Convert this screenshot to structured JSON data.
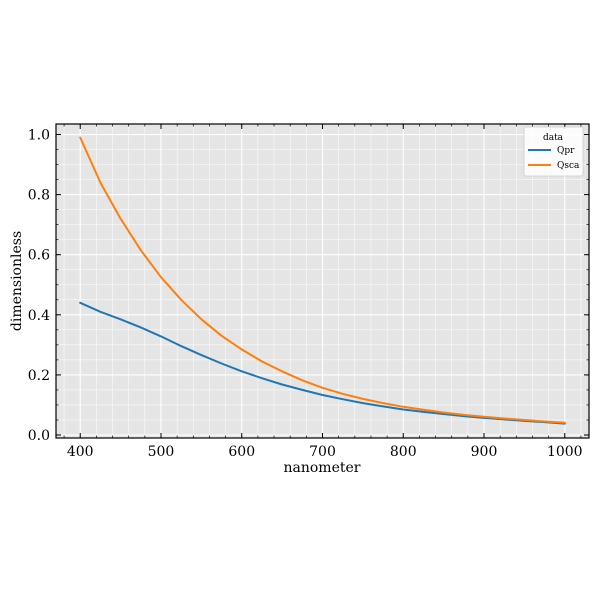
{
  "chart_data": {
    "type": "line",
    "title": "",
    "xlabel": "nanometer",
    "ylabel": "dimensionless",
    "xlim": [
      370,
      1030
    ],
    "ylim": [
      -0.01,
      1.035
    ],
    "xticks": [
      400,
      500,
      600,
      700,
      800,
      900,
      1000
    ],
    "yticks": [
      0.0,
      0.2,
      0.4,
      0.6,
      0.8,
      1.0
    ],
    "xtick_labels": [
      "400",
      "500",
      "600",
      "700",
      "800",
      "900",
      "1000"
    ],
    "ytick_labels": [
      "0.0",
      "0.2",
      "0.4",
      "0.6",
      "0.8",
      "1.0"
    ],
    "grid": true,
    "legend": {
      "title": "data",
      "position": "top-right"
    },
    "x": [
      400,
      425,
      450,
      475,
      500,
      525,
      550,
      575,
      600,
      625,
      650,
      675,
      700,
      725,
      750,
      775,
      800,
      825,
      850,
      875,
      900,
      925,
      950,
      975,
      1000
    ],
    "series": [
      {
        "name": "Qpr",
        "color": "#1f77b4",
        "values": [
          0.44,
          0.41,
          0.385,
          0.358,
          0.328,
          0.296,
          0.266,
          0.238,
          0.212,
          0.189,
          0.168,
          0.15,
          0.133,
          0.119,
          0.106,
          0.095,
          0.085,
          0.077,
          0.07,
          0.063,
          0.057,
          0.052,
          0.047,
          0.043,
          0.038
        ]
      },
      {
        "name": "Qsca",
        "color": "#ff7f0e",
        "values": [
          0.99,
          0.84,
          0.72,
          0.615,
          0.525,
          0.45,
          0.385,
          0.33,
          0.285,
          0.245,
          0.212,
          0.182,
          0.157,
          0.137,
          0.12,
          0.106,
          0.094,
          0.084,
          0.075,
          0.067,
          0.061,
          0.055,
          0.05,
          0.045,
          0.041
        ]
      }
    ]
  }
}
